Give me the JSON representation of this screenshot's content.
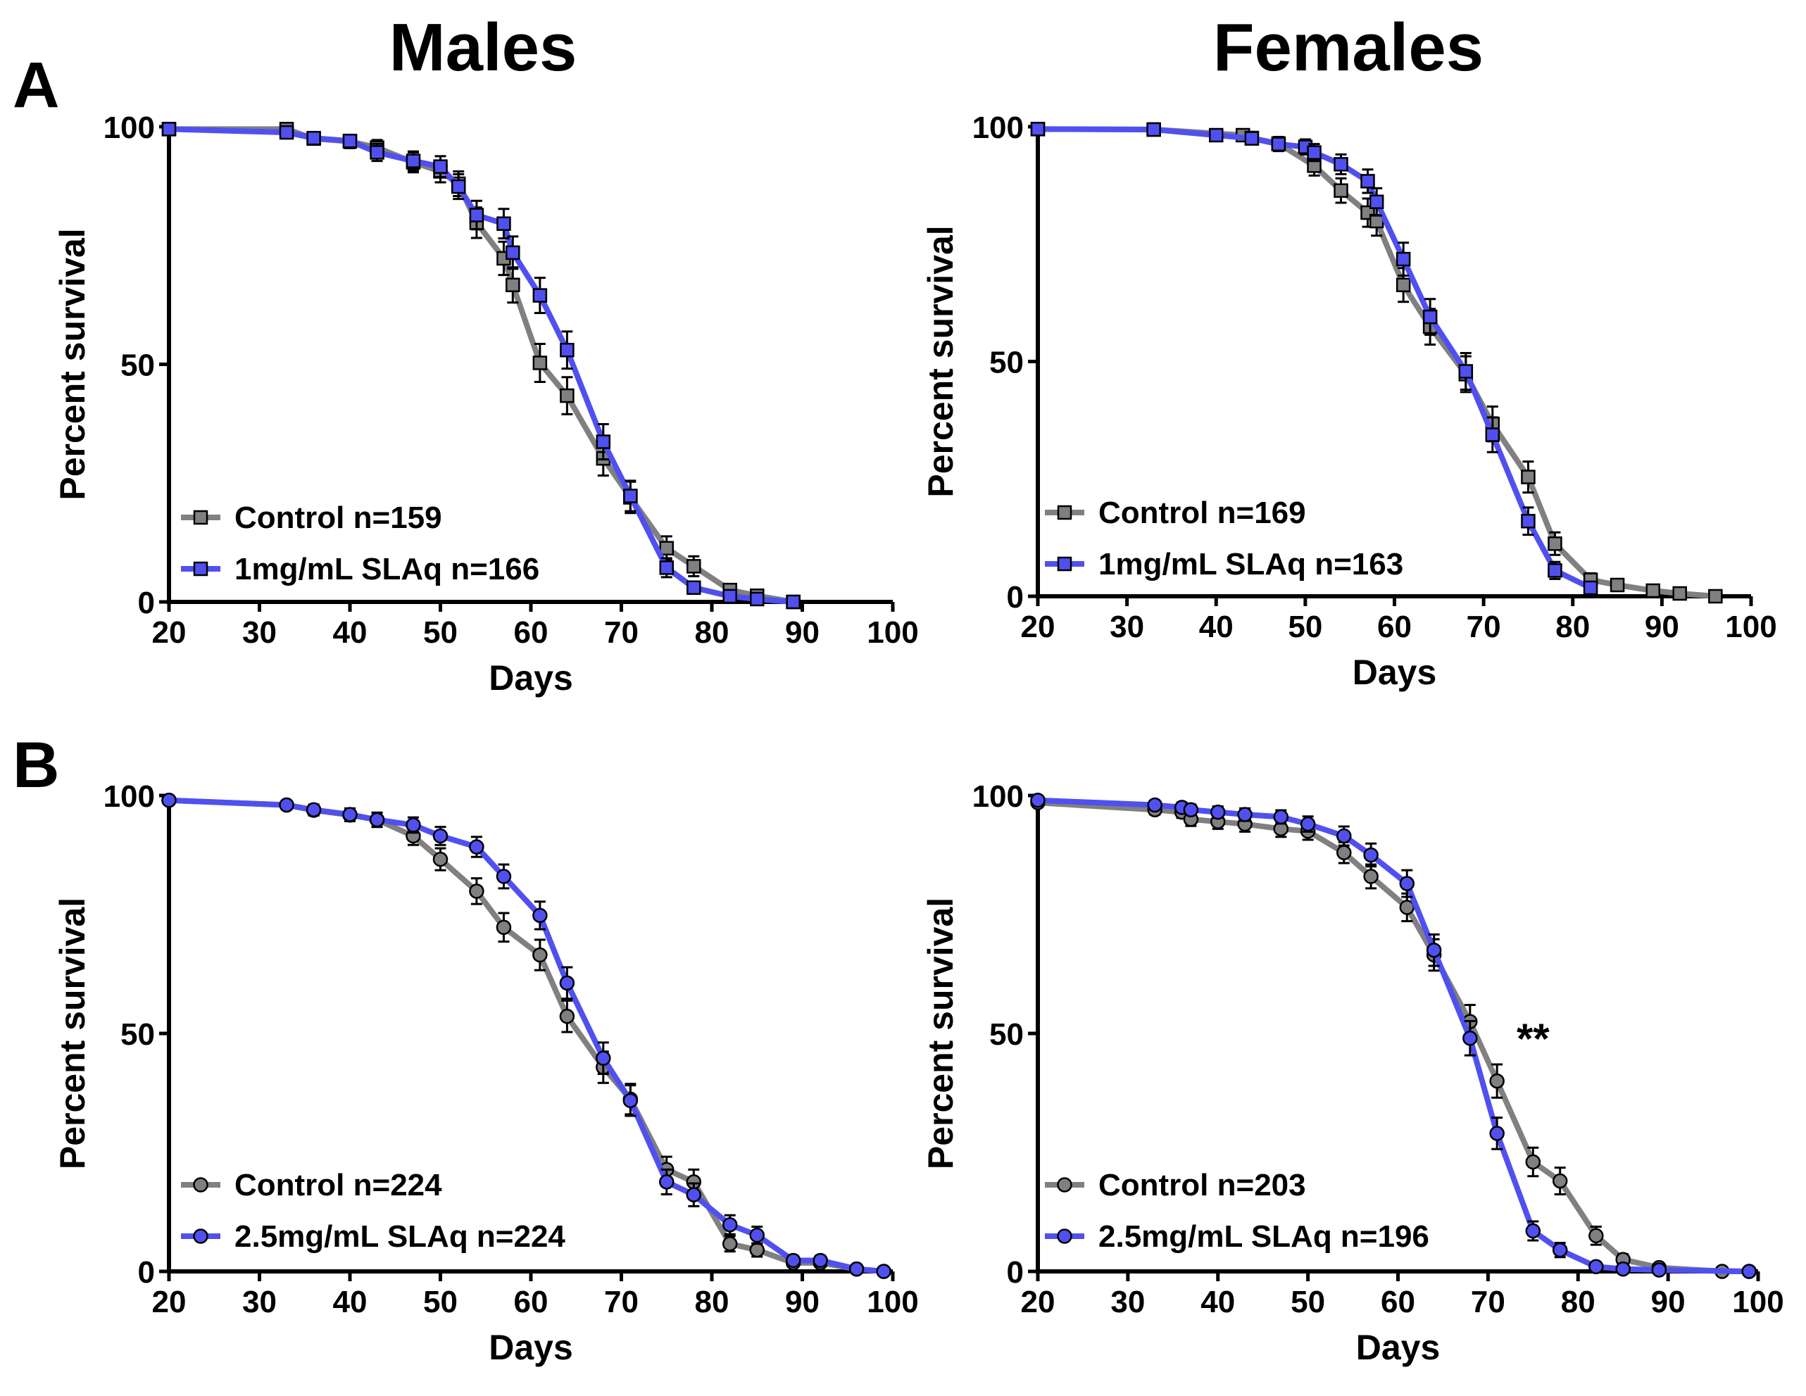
{
  "figure": {
    "column_titles": [
      "Males",
      "Females"
    ],
    "panel_letters": [
      "A",
      "B"
    ],
    "colors": {
      "control": "#808080",
      "treated": "#5050f0",
      "marker_edge": "#000000",
      "axis": "#000000"
    }
  },
  "chart_data": [
    {
      "type": "line",
      "panel": "A",
      "column": "Males",
      "marker": "square",
      "xlabel": "Days",
      "ylabel": "Percent survival",
      "xlim": [
        20,
        100
      ],
      "ylim": [
        0,
        100
      ],
      "xticks": [
        20,
        30,
        40,
        50,
        60,
        70,
        80,
        90,
        100
      ],
      "yticks": [
        0,
        50,
        100
      ],
      "legend_position": "bottom-left",
      "annotation": "",
      "series": [
        {
          "name": "Control n=159",
          "key": "control",
          "x": [
            20,
            33,
            36,
            40,
            43,
            47,
            50,
            52,
            54,
            57,
            58,
            61,
            64,
            68,
            71,
            75,
            78,
            82,
            85,
            89
          ],
          "y": [
            99.5,
            99.5,
            97.5,
            96.9,
            95.6,
            92.5,
            90.6,
            88.0,
            79.8,
            72.3,
            66.7,
            50.3,
            43.4,
            30.2,
            22.0,
            11.3,
            7.5,
            2.5,
            1.3,
            0
          ],
          "err": [
            0,
            0.5,
            1.2,
            1.4,
            1.6,
            2.1,
            2.3,
            2.6,
            3.2,
            3.5,
            3.7,
            4.0,
            3.9,
            3.6,
            3.3,
            2.5,
            2.1,
            1.2,
            0.9,
            0
          ]
        },
        {
          "name": "1mg/mL SLAq n=166",
          "key": "treated",
          "x": [
            20,
            33,
            36,
            40,
            43,
            47,
            50,
            52,
            54,
            57,
            58,
            61,
            64,
            68,
            71,
            75,
            78,
            82,
            85,
            89
          ],
          "y": [
            99.5,
            98.8,
            97.6,
            97.0,
            94.6,
            92.8,
            91.6,
            87.4,
            81.4,
            79.6,
            73.5,
            64.5,
            53.0,
            33.7,
            22.3,
            7.2,
            3.0,
            1.2,
            0.6,
            0
          ],
          "err": [
            0,
            0.8,
            1.2,
            1.3,
            1.8,
            2.0,
            2.2,
            2.6,
            3.0,
            3.1,
            3.4,
            3.7,
            3.9,
            3.7,
            3.2,
            2.0,
            1.3,
            0.8,
            0.6,
            0
          ]
        }
      ]
    },
    {
      "type": "line",
      "panel": "A",
      "column": "Females",
      "marker": "square",
      "xlabel": "Days",
      "ylabel": "Percent survival",
      "xlim": [
        20,
        100
      ],
      "ylim": [
        0,
        100
      ],
      "xticks": [
        20,
        30,
        40,
        50,
        60,
        70,
        80,
        90,
        100
      ],
      "yticks": [
        0,
        50,
        100
      ],
      "legend_position": "bottom-left",
      "annotation": "",
      "series": [
        {
          "name": "Control n=169",
          "key": "control",
          "x": [
            20,
            33,
            43,
            44,
            47,
            51,
            54,
            57,
            58,
            61,
            64,
            68,
            71,
            75,
            78,
            82,
            85,
            89,
            92,
            96
          ],
          "y": [
            99.5,
            99.4,
            98.2,
            97.6,
            96.4,
            91.7,
            86.4,
            81.7,
            79.9,
            66.3,
            57.4,
            47.3,
            36.7,
            25.4,
            11.2,
            3.5,
            2.4,
            1.2,
            0.6,
            0
          ],
          "err": [
            0,
            0.6,
            1.0,
            1.2,
            1.4,
            2.1,
            2.6,
            3.0,
            3.1,
            3.6,
            3.8,
            3.8,
            3.7,
            3.3,
            2.4,
            1.4,
            1.2,
            0.8,
            0.6,
            0
          ]
        },
        {
          "name": "1mg/mL SLAq n=163",
          "key": "treated",
          "x": [
            20,
            33,
            40,
            44,
            47,
            50,
            51,
            54,
            57,
            58,
            61,
            64,
            68,
            71,
            75,
            78,
            82
          ],
          "y": [
            99.5,
            99.4,
            98.2,
            97.5,
            96.3,
            95.7,
            94.5,
            92.0,
            88.4,
            84.0,
            71.8,
            59.5,
            47.9,
            34.4,
            16.0,
            5.5,
            1.8
          ],
          "err": [
            0,
            0.6,
            1.0,
            1.2,
            1.5,
            1.6,
            1.8,
            2.1,
            2.5,
            2.9,
            3.5,
            3.8,
            3.9,
            3.7,
            2.9,
            1.8,
            1.0
          ]
        }
      ]
    },
    {
      "type": "line",
      "panel": "B",
      "column": "Males",
      "marker": "circle",
      "xlabel": "Days",
      "ylabel": "Percent survival",
      "xlim": [
        20,
        100
      ],
      "ylim": [
        0,
        100
      ],
      "xticks": [
        20,
        30,
        40,
        50,
        60,
        70,
        80,
        90,
        100
      ],
      "yticks": [
        0,
        50,
        100
      ],
      "legend_position": "bottom-left",
      "annotation": "",
      "series": [
        {
          "name": "Control n=224",
          "key": "control",
          "x": [
            20,
            33,
            36,
            40,
            43,
            47,
            50,
            54,
            57,
            61,
            64,
            68,
            71,
            75,
            78,
            82,
            85,
            89,
            92,
            96,
            99
          ],
          "y": [
            99.0,
            98.0,
            96.9,
            95.9,
            94.9,
            91.5,
            86.6,
            79.9,
            72.3,
            66.5,
            53.6,
            42.9,
            36.2,
            21.4,
            18.8,
            5.8,
            4.5,
            1.8,
            1.8,
            0.5,
            0
          ],
          "err": [
            0,
            0.9,
            1.1,
            1.3,
            1.5,
            1.9,
            2.3,
            2.7,
            3.0,
            3.2,
            3.3,
            3.3,
            3.2,
            2.7,
            2.6,
            1.6,
            1.4,
            0.9,
            0.9,
            0.5,
            0
          ]
        },
        {
          "name": "2.5mg/mL SLAq n=224",
          "key": "treated",
          "x": [
            20,
            33,
            36,
            40,
            43,
            47,
            50,
            54,
            57,
            61,
            64,
            68,
            71,
            75,
            78,
            82,
            85,
            89,
            92,
            96,
            99
          ],
          "y": [
            99.0,
            98.0,
            97.0,
            96.0,
            94.9,
            93.8,
            91.5,
            89.2,
            83.0,
            74.8,
            60.6,
            44.8,
            35.9,
            18.8,
            16.1,
            9.8,
            7.6,
            2.3,
            2.3,
            0.5,
            0
          ],
          "err": [
            0,
            0.9,
            1.1,
            1.3,
            1.5,
            1.6,
            1.9,
            2.1,
            2.5,
            2.9,
            3.3,
            3.3,
            3.2,
            2.6,
            2.4,
            2.0,
            1.8,
            1.0,
            1.0,
            0.5,
            0
          ]
        }
      ]
    },
    {
      "type": "line",
      "panel": "B",
      "column": "Females",
      "marker": "circle",
      "xlabel": "Days",
      "ylabel": "Percent survival",
      "xlim": [
        20,
        100
      ],
      "ylim": [
        0,
        100
      ],
      "xticks": [
        20,
        30,
        40,
        50,
        60,
        70,
        80,
        90,
        100
      ],
      "yticks": [
        0,
        50,
        100
      ],
      "legend_position": "bottom-left",
      "annotation": "**",
      "annotation_pos": [
        75,
        50
      ],
      "series": [
        {
          "name": "Control n=203",
          "key": "control",
          "x": [
            20,
            33,
            36,
            37,
            40,
            43,
            47,
            50,
            54,
            57,
            61,
            64,
            68,
            71,
            75,
            78,
            82,
            85,
            89,
            96,
            99
          ],
          "y": [
            98.5,
            97.0,
            96.5,
            95.0,
            94.5,
            94.0,
            93.0,
            92.5,
            88.0,
            83.0,
            76.5,
            66.5,
            52.5,
            40.0,
            23.0,
            19.0,
            7.5,
            2.5,
            0.8,
            0,
            0
          ],
          "err": [
            0,
            1.0,
            1.2,
            1.4,
            1.5,
            1.6,
            1.7,
            1.8,
            2.2,
            2.5,
            2.9,
            3.3,
            3.5,
            3.5,
            3.0,
            2.8,
            1.9,
            1.1,
            0.6,
            0,
            0
          ]
        },
        {
          "name": "2.5mg/mL SLAq n=196",
          "key": "treated",
          "x": [
            20,
            33,
            36,
            37,
            40,
            43,
            47,
            50,
            54,
            57,
            61,
            64,
            68,
            71,
            75,
            78,
            82,
            85,
            89,
            99
          ],
          "y": [
            99.0,
            98.0,
            97.5,
            97.0,
            96.5,
            96.0,
            95.5,
            94.0,
            91.5,
            87.5,
            81.5,
            67.5,
            49.0,
            29.0,
            8.5,
            4.5,
            1.0,
            0.5,
            0.3,
            0
          ],
          "err": [
            0,
            0.9,
            1.0,
            1.1,
            1.2,
            1.3,
            1.4,
            1.6,
            2.0,
            2.4,
            2.8,
            3.3,
            3.6,
            3.3,
            2.0,
            1.5,
            0.7,
            0.5,
            0.4,
            0
          ]
        }
      ]
    }
  ]
}
